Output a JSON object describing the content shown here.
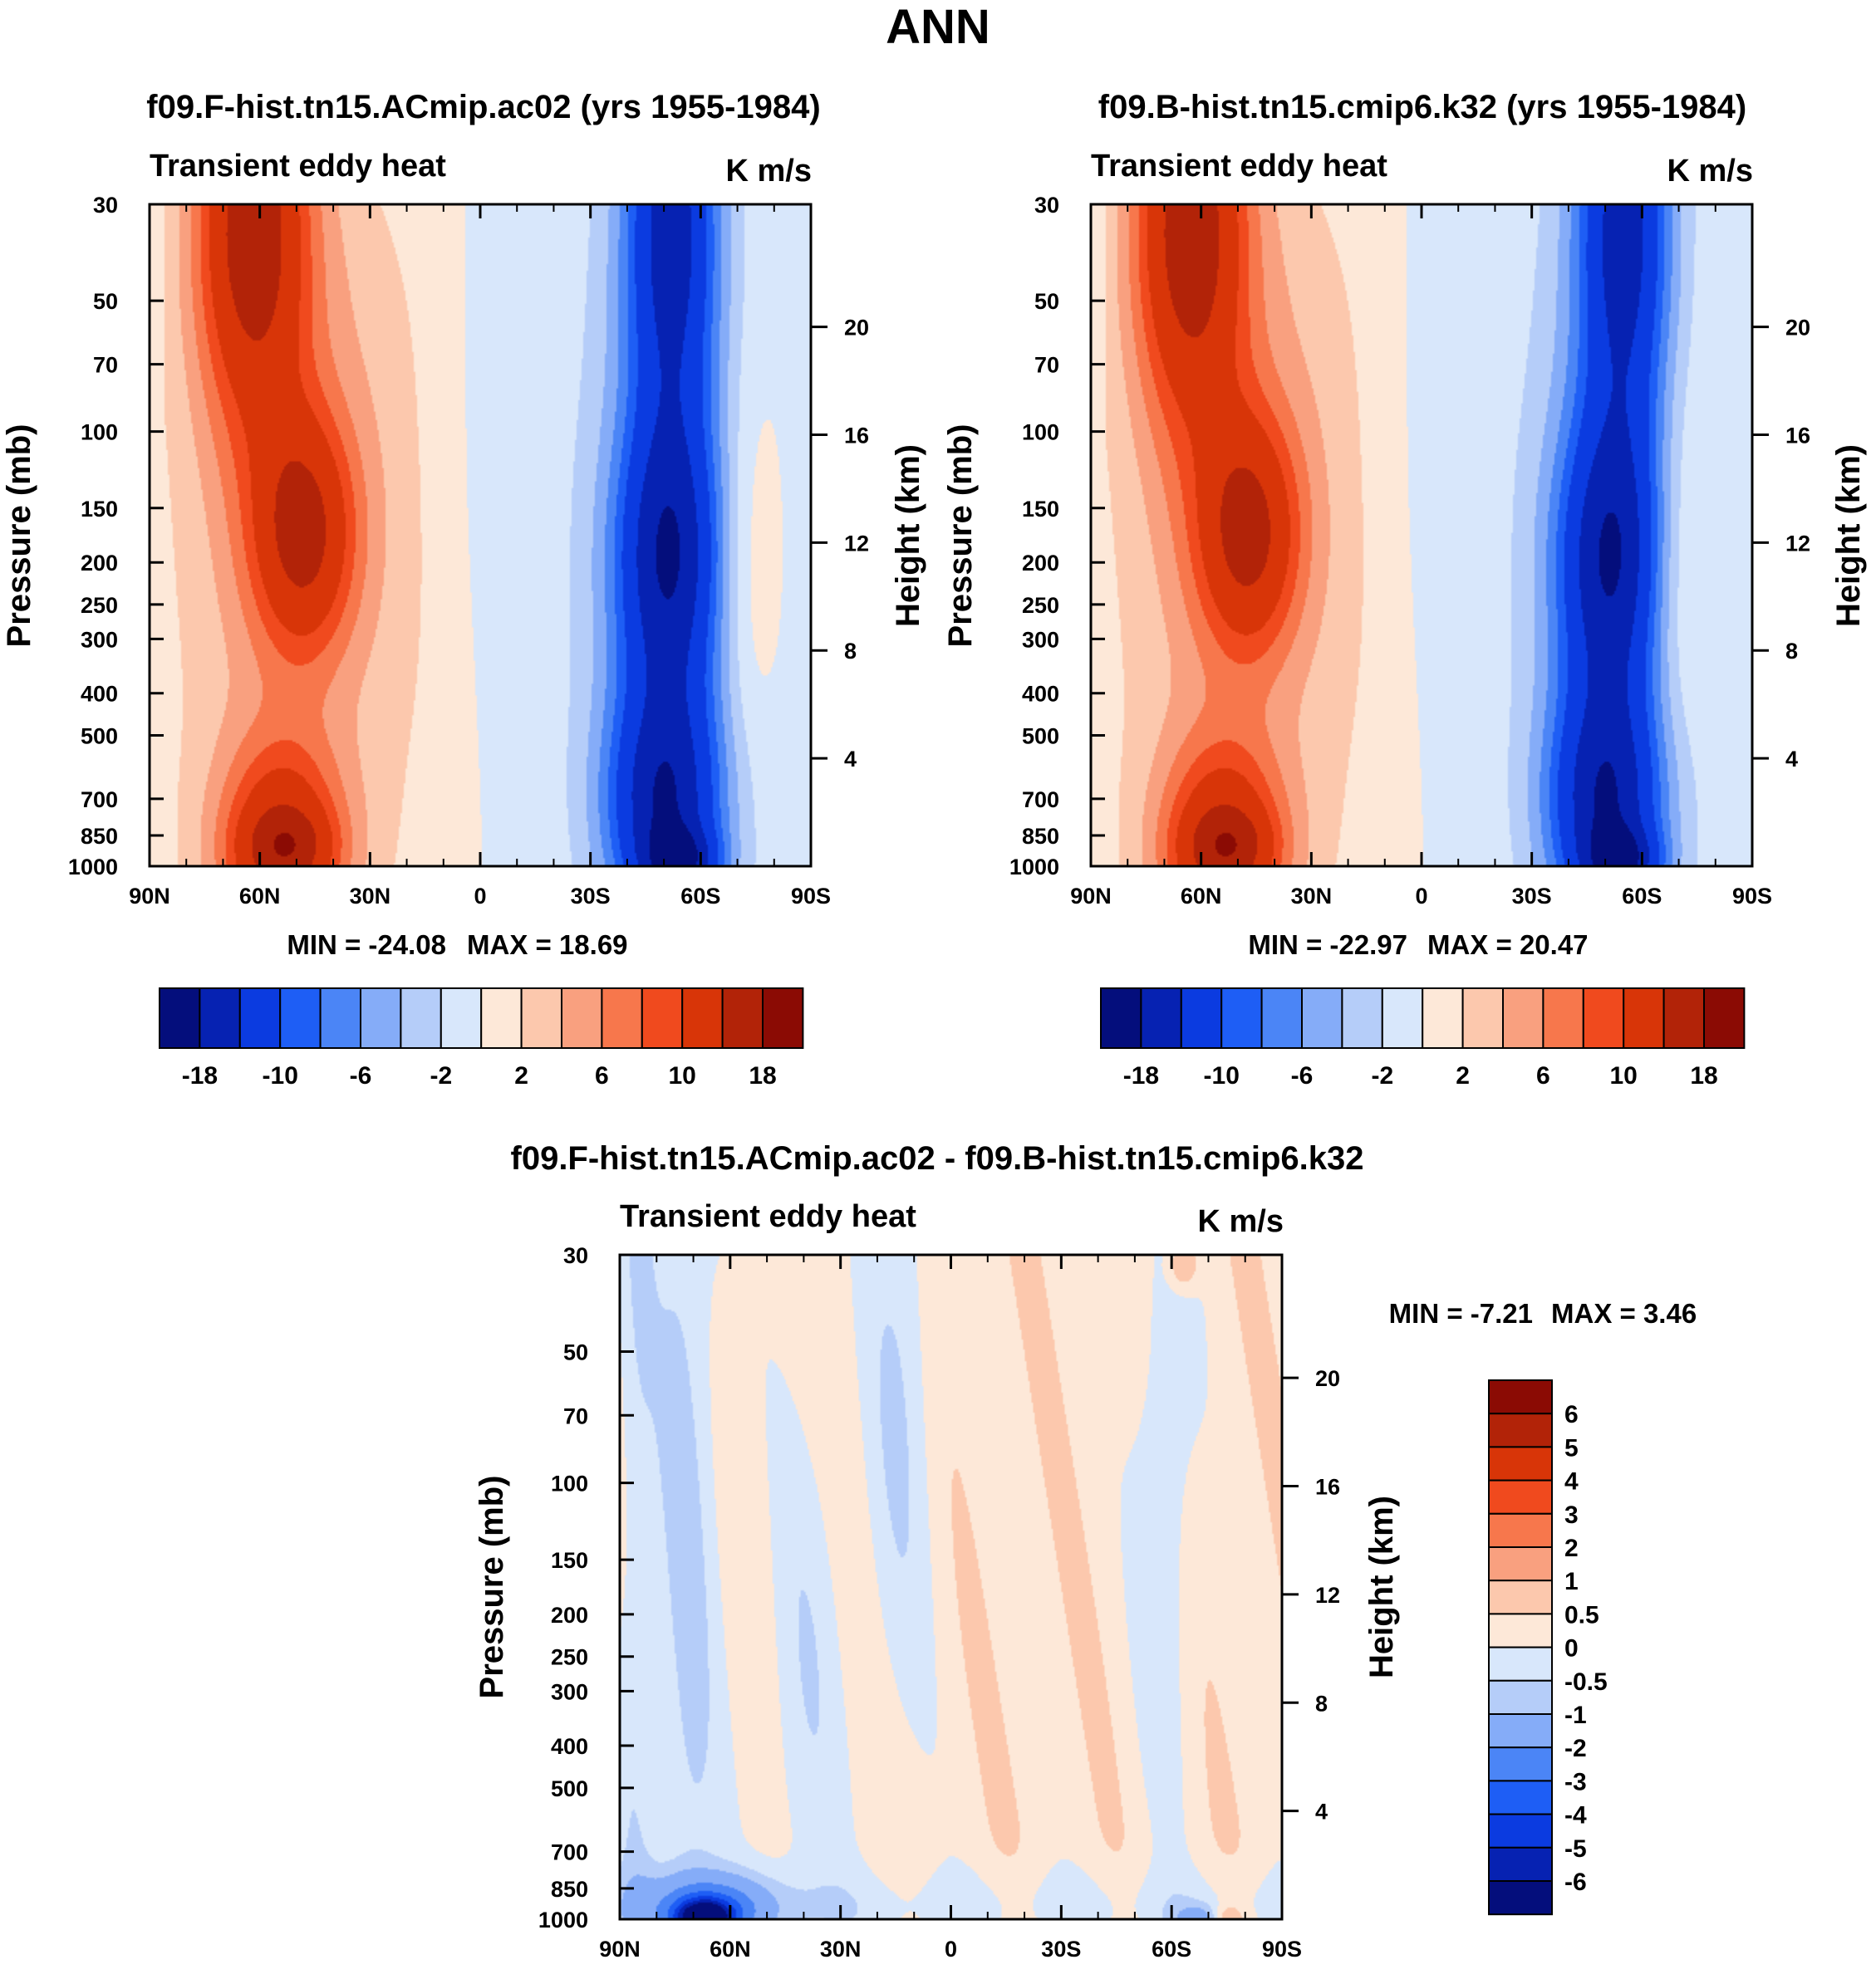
{
  "figure_title": "ANN",
  "chart_data": [
    {
      "type": "heatmap",
      "title": "f09.F-hist.tn15.ACmip.ac02 (yrs 1955-1984)",
      "left_string": "Transient eddy heat",
      "right_string": "K m/s",
      "ylabel": "Pressure (mb)",
      "ylabel_right": "Height (km)",
      "x_tick_labels": [
        "90N",
        "60N",
        "30N",
        "0",
        "30S",
        "60S",
        "90S"
      ],
      "x_range": [
        90,
        -90
      ],
      "pressure_ticks": [
        30,
        50,
        70,
        100,
        150,
        200,
        250,
        300,
        400,
        500,
        700,
        850,
        1000
      ],
      "ylim": [
        1000,
        30
      ],
      "height_ticks": [
        4,
        8,
        12,
        16,
        20
      ],
      "min_label": "MIN = -24.08",
      "max_label": "MAX =  18.69",
      "min": -24.08,
      "max": 18.69,
      "features": [
        {
          "lat": 65,
          "p": 36,
          "value": 15
        },
        {
          "lat": 60,
          "p": 60,
          "value": 10
        },
        {
          "lat": 48,
          "p": 180,
          "value": 12
        },
        {
          "lat": 55,
          "p": 700,
          "value": 11
        },
        {
          "lat": 50,
          "p": 850,
          "value": 14
        },
        {
          "lat": 18,
          "p": 250,
          "value": 1.2
        },
        {
          "lat": -52,
          "p": 35,
          "value": -13
        },
        {
          "lat": -52,
          "p": 200,
          "value": -14
        },
        {
          "lat": -50,
          "p": 700,
          "value": -13
        },
        {
          "lat": -52,
          "p": 950,
          "value": -20
        },
        {
          "lat": -73,
          "p": 250,
          "value": 2
        }
      ]
    },
    {
      "type": "heatmap",
      "title": "f09.B-hist.tn15.cmip6.k32 (yrs 1955-1984)",
      "left_string": "Transient eddy heat",
      "right_string": "K m/s",
      "ylabel": "Pressure (mb)",
      "ylabel_right": "Height (km)",
      "x_tick_labels": [
        "90N",
        "60N",
        "30N",
        "0",
        "30S",
        "60S",
        "90S"
      ],
      "x_range": [
        90,
        -90
      ],
      "pressure_ticks": [
        30,
        50,
        70,
        100,
        150,
        200,
        250,
        300,
        400,
        500,
        700,
        850,
        1000
      ],
      "ylim": [
        1000,
        30
      ],
      "height_ticks": [
        4,
        8,
        12,
        16,
        20
      ],
      "min_label": "MIN = -22.97",
      "max_label": "MAX =  20.47",
      "min": -22.97,
      "max": 20.47,
      "features": [
        {
          "lat": 65,
          "p": 36,
          "value": 15
        },
        {
          "lat": 60,
          "p": 60,
          "value": 10
        },
        {
          "lat": 46,
          "p": 180,
          "value": 12
        },
        {
          "lat": 55,
          "p": 700,
          "value": 11
        },
        {
          "lat": 50,
          "p": 850,
          "value": 14
        },
        {
          "lat": 18,
          "p": 250,
          "value": 1.2
        },
        {
          "lat": -55,
          "p": 35,
          "value": -13
        },
        {
          "lat": -52,
          "p": 200,
          "value": -14
        },
        {
          "lat": -50,
          "p": 700,
          "value": -13
        },
        {
          "lat": -52,
          "p": 950,
          "value": -20
        },
        {
          "lat": -70,
          "p": 220,
          "value": 2
        }
      ]
    },
    {
      "type": "heatmap",
      "title": "f09.F-hist.tn15.ACmip.ac02 - f09.B-hist.tn15.cmip6.k32",
      "left_string": "Transient eddy heat",
      "right_string": "K m/s",
      "ylabel": "Pressure (mb)",
      "ylabel_right": "Height (km)",
      "x_tick_labels": [
        "90N",
        "60N",
        "30N",
        "0",
        "30S",
        "60S",
        "90S"
      ],
      "x_range": [
        90,
        -90
      ],
      "pressure_ticks": [
        30,
        50,
        70,
        100,
        150,
        200,
        250,
        300,
        400,
        500,
        700,
        850,
        1000
      ],
      "ylim": [
        1000,
        30
      ],
      "height_ticks": [
        4,
        8,
        12,
        16,
        20
      ],
      "min_label": "MIN =  -7.21",
      "max_label": "MAX =   3.46",
      "min": -7.21,
      "max": 3.46,
      "features": [
        {
          "lat": 67,
          "p": 980,
          "value": -6
        },
        {
          "lat": 55,
          "p": 990,
          "value": -2
        },
        {
          "lat": -62,
          "p": 35,
          "value": 1
        }
      ]
    }
  ],
  "colorbars": {
    "main": {
      "levels": [
        -18,
        -14,
        -10,
        -8,
        -6,
        -4,
        -2,
        0,
        2,
        4,
        6,
        8,
        10,
        14,
        18
      ],
      "tick_labels": [
        "-18",
        "-10",
        "-6",
        "-2",
        "2",
        "6",
        "10",
        "18"
      ]
    },
    "diff": {
      "levels": [
        -6,
        -5,
        -4,
        -3,
        -2,
        -1,
        -0.5,
        0,
        0.5,
        1,
        2,
        3,
        4,
        5,
        6
      ],
      "tick_labels": [
        "6",
        "5",
        "4",
        "3",
        "2",
        "1",
        "0.5",
        "0",
        "-0.5",
        "-1",
        "-2",
        "-3",
        "-4",
        "-5",
        "-6"
      ]
    },
    "colors": [
      "#040e7c",
      "#0622b2",
      "#0b3be0",
      "#1e5ef5",
      "#4b85f6",
      "#85acf8",
      "#b5cdf9",
      "#d8e7fb",
      "#fde8d8",
      "#fcc8ad",
      "#f9a07f",
      "#f7774c",
      "#f04a1e",
      "#d83508",
      "#b22308",
      "#8b0b04"
    ]
  }
}
